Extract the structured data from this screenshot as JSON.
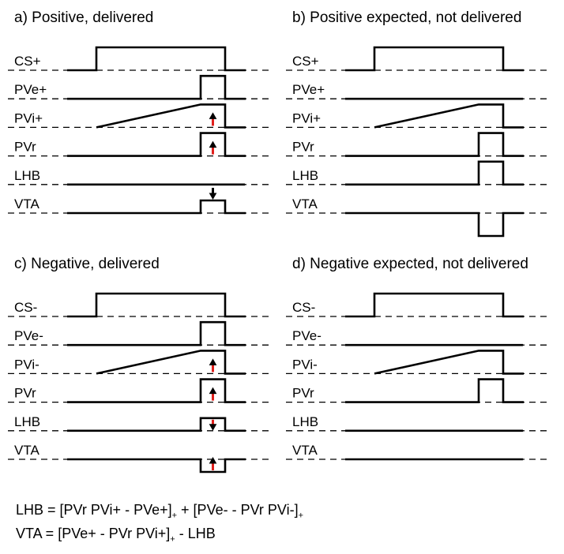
{
  "panels": [
    {
      "title": "a) Positive, delivered",
      "rows": [
        {
          "label": "CS+",
          "signal": "cs"
        },
        {
          "label": "PVe+",
          "signal": "pulse"
        },
        {
          "label": "PVi+",
          "signal": "ramp",
          "arrow": "up",
          "arrow_color": "red"
        },
        {
          "label": "PVr",
          "signal": "pulse",
          "arrow": "up",
          "arrow_color": "red"
        },
        {
          "label": "LHB",
          "signal": "flat"
        },
        {
          "label": "VTA",
          "signal": "small_pulse",
          "arrow": "down",
          "arrow_color": "black"
        }
      ]
    },
    {
      "title": "b) Positive expected, not delivered",
      "rows": [
        {
          "label": "CS+",
          "signal": "cs"
        },
        {
          "label": "PVe+",
          "signal": "flat"
        },
        {
          "label": "PVi+",
          "signal": "ramp_full"
        },
        {
          "label": "PVr",
          "signal": "pulse"
        },
        {
          "label": "LHB",
          "signal": "pulse"
        },
        {
          "label": "VTA",
          "signal": "dip"
        }
      ]
    },
    {
      "title": "c) Negative, delivered",
      "rows": [
        {
          "label": "CS-",
          "signal": "cs"
        },
        {
          "label": "PVe-",
          "signal": "pulse"
        },
        {
          "label": "PVi-",
          "signal": "ramp",
          "arrow": "up",
          "arrow_color": "red"
        },
        {
          "label": "PVr",
          "signal": "pulse",
          "arrow": "up",
          "arrow_color": "red"
        },
        {
          "label": "LHB",
          "signal": "small_pulse",
          "arrow": "down",
          "arrow_color": "red"
        },
        {
          "label": "VTA",
          "signal": "small_dip",
          "arrow": "up",
          "arrow_color": "red"
        }
      ]
    },
    {
      "title": "d) Negative expected, not delivered",
      "rows": [
        {
          "label": "CS-",
          "signal": "cs"
        },
        {
          "label": "PVe-",
          "signal": "flat"
        },
        {
          "label": "PVi-",
          "signal": "ramp_full"
        },
        {
          "label": "PVr",
          "signal": "pulse"
        },
        {
          "label": "LHB",
          "signal": "flat"
        },
        {
          "label": "VTA",
          "signal": "flat"
        }
      ]
    }
  ],
  "formulas": {
    "lhb": {
      "lhs": "LHB = [PVr PVi+ - PVe+]",
      "sub1": "+",
      "mid": " + [PVe- - PVr PVi-]",
      "sub2": "+"
    },
    "vta": {
      "lhs": "VTA = [PVe+ - PVr PVi+]",
      "sub1": "+",
      "rest": " - LHB"
    }
  },
  "colors": {
    "line": "#000000",
    "arrow_red": "#e0201c",
    "arrow_black": "#000000"
  }
}
